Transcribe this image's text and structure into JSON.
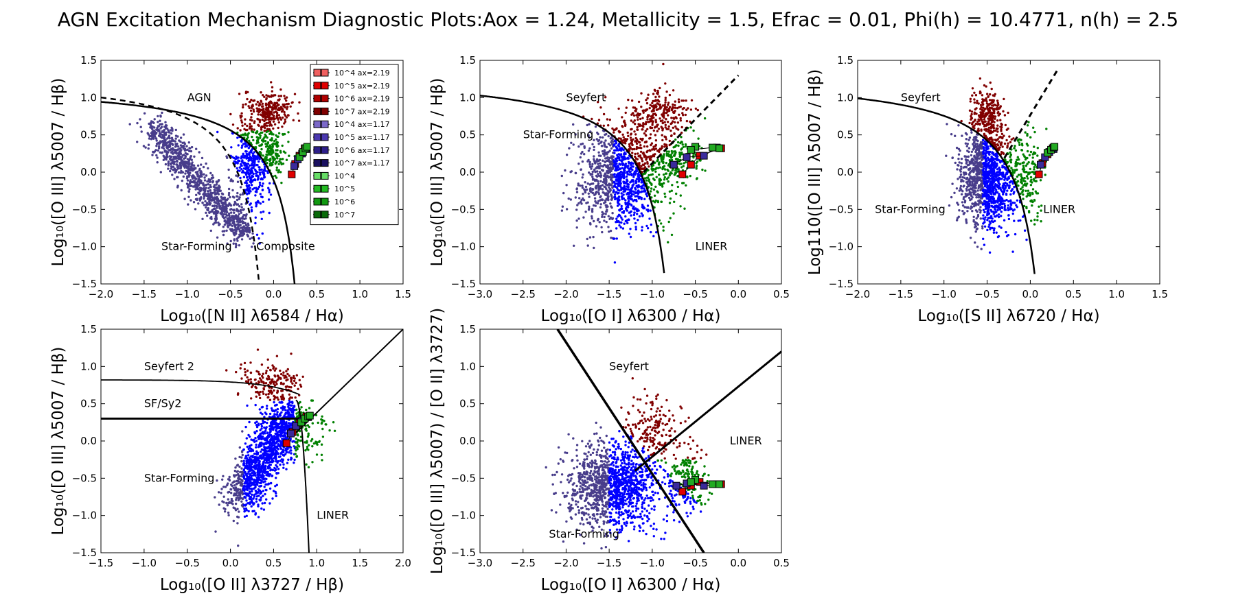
{
  "title": "AGN Excitation Mechanism Diagnostic Plots:Aox = 1.24, Metallicity = 1.5, Efrac = 0.01, Phi(h) = 10.4771, n(h) = 2.5",
  "colors": {
    "sf": "#483D8B",
    "blue": "#0000FF",
    "seyfert": "#800000",
    "liner": "#008000"
  },
  "legend": [
    {
      "label": "10^4 ax=2.19",
      "color": "#f06060"
    },
    {
      "label": "10^5 ax=2.19",
      "color": "#e00000"
    },
    {
      "label": "10^6 ax=2.19",
      "color": "#b00000"
    },
    {
      "label": "10^7 ax=2.19",
      "color": "#800000"
    },
    {
      "label": "10^4 ax=1.17",
      "color": "#7b68c8"
    },
    {
      "label": "10^5 ax=1.17",
      "color": "#4b38b0"
    },
    {
      "label": "10^6 ax=1.17",
      "color": "#2e1f8a"
    },
    {
      "label": "10^7 ax=1.17",
      "color": "#1a1060"
    },
    {
      "label": "10^4",
      "color": "#66dd66"
    },
    {
      "label": "10^5",
      "color": "#22bb22"
    },
    {
      "label": "10^6",
      "color": "#119911"
    },
    {
      "label": "10^7",
      "color": "#0a6a0a"
    }
  ],
  "chart_data": [
    {
      "type": "scatter",
      "panel": "nii",
      "xlabel": "Log₁₀([N II] λ6584 / Hα)",
      "ylabel": "Log₁₀([O III] λ5007 / Hβ)",
      "xlim": [
        -2.0,
        1.5
      ],
      "ylim": [
        -1.5,
        1.5
      ],
      "xticks": [
        "−2.0",
        "−1.5",
        "−1.0",
        "−0.5",
        "0.0",
        "0.5",
        "1.0",
        "1.5"
      ],
      "yticks": [
        "−1.5",
        "−1.0",
        "−0.5",
        "0.0",
        "0.5",
        "1.0",
        "1.5"
      ],
      "region_labels": [
        {
          "text": "AGN",
          "x": -1.0,
          "y": 1.0
        },
        {
          "text": "Star-Forming",
          "x": -1.3,
          "y": -1.0
        },
        {
          "text": "Composite",
          "x": -0.2,
          "y": -1.0
        }
      ],
      "models": [
        {
          "name": "ax2.19",
          "color": "#e00000",
          "points": [
            [
              0.21,
              -0.03
            ],
            [
              0.25,
              0.11
            ],
            [
              0.3,
              0.22
            ],
            [
              0.36,
              0.32
            ]
          ]
        },
        {
          "name": "ax1.17",
          "color": "#3a2a9c",
          "points": [
            [
              0.24,
              0.08
            ],
            [
              0.28,
              0.17
            ],
            [
              0.33,
              0.25
            ],
            [
              0.38,
              0.31
            ]
          ]
        },
        {
          "name": "agn",
          "color": "#22aa22",
          "points": [
            [
              0.3,
              0.2
            ],
            [
              0.34,
              0.27
            ],
            [
              0.37,
              0.32
            ],
            [
              0.39,
              0.34
            ]
          ]
        }
      ]
    },
    {
      "type": "scatter",
      "panel": "oi",
      "xlabel": "Log₁₀([O I] λ6300 / Hα)",
      "ylabel": "Log₁₀([O III] λ5007 / Hβ)",
      "xlim": [
        -3.0,
        0.5
      ],
      "ylim": [
        -1.5,
        1.5
      ],
      "xticks": [
        "−3.0",
        "−2.5",
        "−2.0",
        "−1.5",
        "−1.0",
        "−0.5",
        "0.0",
        "0.5"
      ],
      "yticks": [
        "−1.5",
        "−1.0",
        "−0.5",
        "0.0",
        "0.5",
        "1.0",
        "1.5"
      ],
      "region_labels": [
        {
          "text": "Seyfert",
          "x": -2.0,
          "y": 1.0
        },
        {
          "text": "Star-Forming",
          "x": -2.5,
          "y": 0.5
        },
        {
          "text": "LINER",
          "x": -0.5,
          "y": -1.0
        }
      ],
      "models": [
        {
          "name": "ax2.19",
          "color": "#e00000",
          "points": [
            [
              -0.65,
              -0.03
            ],
            [
              -0.55,
              0.1
            ],
            [
              -0.45,
              0.22
            ],
            [
              -0.2,
              0.32
            ]
          ]
        },
        {
          "name": "ax1.17",
          "color": "#3a2a9c",
          "points": [
            [
              -0.75,
              0.1
            ],
            [
              -0.6,
              0.2
            ],
            [
              -0.4,
              0.22
            ],
            [
              -0.25,
              0.33
            ]
          ]
        },
        {
          "name": "agn",
          "color": "#22aa22",
          "points": [
            [
              -0.5,
              0.34
            ],
            [
              -0.55,
              0.3
            ],
            [
              -0.3,
              0.33
            ],
            [
              -0.22,
              0.32
            ]
          ]
        }
      ]
    },
    {
      "type": "scatter",
      "panel": "sii",
      "xlabel": "Log₁₀([S II] λ6720 / Hα)",
      "ylabel": "Log110([O III] λ5007 / Hβ)",
      "xlim": [
        -2.0,
        1.5
      ],
      "ylim": [
        -1.5,
        1.5
      ],
      "xticks": [
        "−2.0",
        "−1.5",
        "−1.0",
        "−0.5",
        "0.0",
        "0.5",
        "1.0",
        "1.5"
      ],
      "yticks": [
        "−1.5",
        "−1.0",
        "−0.5",
        "0.0",
        "0.5",
        "1.0",
        "1.5"
      ],
      "region_labels": [
        {
          "text": "Seyfert",
          "x": -1.5,
          "y": 1.0
        },
        {
          "text": "Star-Forming",
          "x": -1.8,
          "y": -0.5
        },
        {
          "text": "LINER",
          "x": 0.15,
          "y": -0.5
        }
      ],
      "models": [
        {
          "name": "ax2.19",
          "color": "#e00000",
          "points": [
            [
              0.1,
              -0.03
            ],
            [
              0.14,
              0.12
            ],
            [
              0.2,
              0.24
            ],
            [
              0.26,
              0.32
            ]
          ]
        },
        {
          "name": "ax1.17",
          "color": "#3a2a9c",
          "points": [
            [
              0.12,
              0.1
            ],
            [
              0.17,
              0.2
            ],
            [
              0.22,
              0.27
            ],
            [
              0.27,
              0.31
            ]
          ]
        },
        {
          "name": "agn",
          "color": "#22aa22",
          "points": [
            [
              0.2,
              0.26
            ],
            [
              0.24,
              0.3
            ],
            [
              0.27,
              0.33
            ],
            [
              0.28,
              0.34
            ]
          ]
        }
      ]
    },
    {
      "type": "scatter",
      "panel": "oii",
      "xlabel": "Log₁₀([O II] λ3727 / Hβ)",
      "ylabel": "Log₁₀([O III] λ5007 / Hβ)",
      "xlim": [
        -1.5,
        2.0
      ],
      "ylim": [
        -1.5,
        1.5
      ],
      "xticks": [
        "−1.5",
        "−1.0",
        "−0.5",
        "0.0",
        "0.5",
        "1.0",
        "1.5",
        "2.0"
      ],
      "yticks": [
        "−1.5",
        "−1.0",
        "−0.5",
        "0.0",
        "0.5",
        "1.0",
        "1.5"
      ],
      "region_labels": [
        {
          "text": "Seyfert 2",
          "x": -1.0,
          "y": 1.0
        },
        {
          "text": "SF/Sy2",
          "x": -1.0,
          "y": 0.5
        },
        {
          "text": "Star-Forming",
          "x": -1.0,
          "y": -0.5
        },
        {
          "text": "LINER",
          "x": 1.0,
          "y": -1.0
        }
      ],
      "models": [
        {
          "name": "ax2.19",
          "color": "#e00000",
          "points": [
            [
              0.65,
              -0.03
            ],
            [
              0.72,
              0.12
            ],
            [
              0.8,
              0.24
            ],
            [
              0.88,
              0.33
            ]
          ]
        },
        {
          "name": "ax1.17",
          "color": "#3a2a9c",
          "points": [
            [
              0.7,
              0.1
            ],
            [
              0.76,
              0.2
            ],
            [
              0.83,
              0.27
            ],
            [
              0.9,
              0.32
            ]
          ]
        },
        {
          "name": "agn",
          "color": "#22aa22",
          "points": [
            [
              0.82,
              0.25
            ],
            [
              0.86,
              0.3
            ],
            [
              0.9,
              0.33
            ],
            [
              0.92,
              0.34
            ]
          ]
        }
      ]
    },
    {
      "type": "scatter",
      "panel": "oiii_oii",
      "xlabel": "Log₁₀([O I] λ6300 / Hα)",
      "ylabel": "Log₁₀([O III] λ5007) / [O II] λ3727)",
      "xlim": [
        -3.0,
        0.5
      ],
      "ylim": [
        -1.5,
        1.5
      ],
      "xticks": [
        "−3.0",
        "−2.5",
        "−2.0",
        "−1.5",
        "−1.0",
        "−0.5",
        "0.0",
        "0.5"
      ],
      "yticks": [
        "−1.5",
        "−1.0",
        "−0.5",
        "0.0",
        "0.5",
        "1.0",
        "1.5"
      ],
      "region_labels": [
        {
          "text": "Seyfert",
          "x": -1.5,
          "y": 1.0
        },
        {
          "text": "LINER",
          "x": -0.1,
          "y": 0.0
        },
        {
          "text": "Star-Forming",
          "x": -2.2,
          "y": -1.25
        }
      ],
      "models": [
        {
          "name": "ax2.19",
          "color": "#e00000",
          "points": [
            [
              -0.65,
              -0.68
            ],
            [
              -0.55,
              -0.6
            ],
            [
              -0.45,
              -0.55
            ],
            [
              -0.2,
              -0.58
            ]
          ]
        },
        {
          "name": "ax1.17",
          "color": "#3a2a9c",
          "points": [
            [
              -0.72,
              -0.6
            ],
            [
              -0.6,
              -0.57
            ],
            [
              -0.4,
              -0.6
            ],
            [
              -0.25,
              -0.58
            ]
          ]
        },
        {
          "name": "agn",
          "color": "#22aa22",
          "points": [
            [
              -0.5,
              -0.52
            ],
            [
              -0.55,
              -0.55
            ],
            [
              -0.3,
              -0.58
            ],
            [
              -0.22,
              -0.58
            ]
          ]
        }
      ]
    }
  ]
}
